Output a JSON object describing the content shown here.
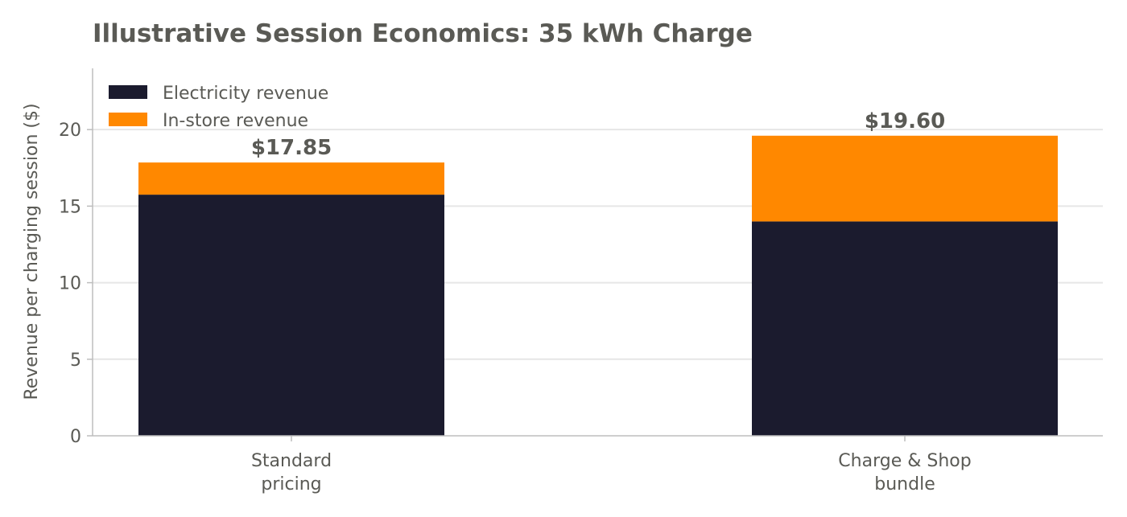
{
  "chart_data": {
    "type": "bar",
    "stacked": true,
    "title": "Illustrative Session Economics: 35 kWh Charge",
    "xlabel": "",
    "ylabel": "Revenue per charging session ($)",
    "categories": [
      [
        "Standard",
        "pricing"
      ],
      [
        "Charge & Shop",
        "bundle"
      ]
    ],
    "series": [
      {
        "name": "Electricity revenue",
        "values": [
          15.75,
          14.0
        ],
        "color": "#1b1b2e"
      },
      {
        "name": "In-store revenue",
        "values": [
          2.1,
          5.6
        ],
        "color": "#ff8800"
      }
    ],
    "totals": [
      "$17.85",
      "$19.60"
    ],
    "ylim": [
      0,
      24
    ],
    "yticks": [
      0,
      5,
      10,
      15,
      20
    ],
    "grid": true,
    "legend_position": "top-left"
  }
}
